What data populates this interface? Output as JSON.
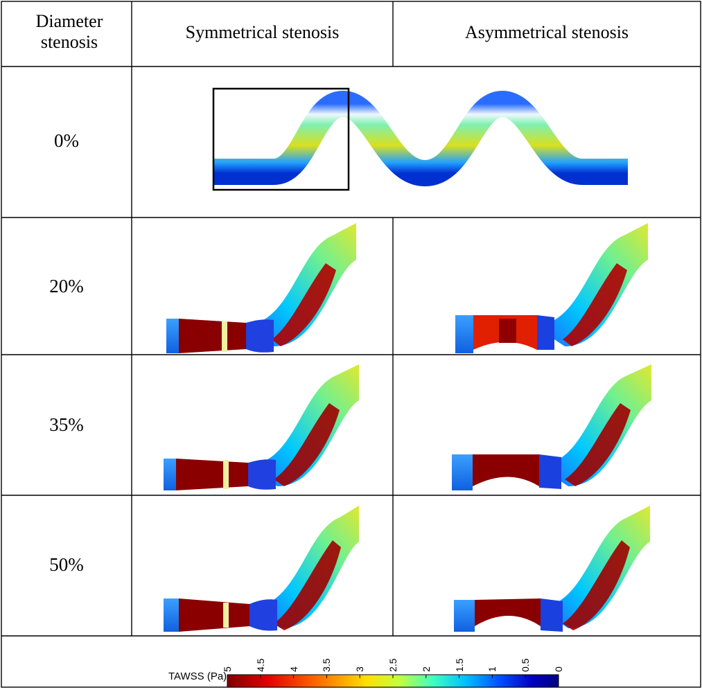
{
  "table": {
    "header": {
      "col1": "Diameter stenosis",
      "col2": "Symmetrical stenosis",
      "col3": "Asymmetrical stenosis"
    },
    "rows": [
      {
        "label": "0%"
      },
      {
        "label": "20%"
      },
      {
        "label": "35%"
      },
      {
        "label": "50%"
      }
    ]
  },
  "colorbar": {
    "title": "TAWSS (Pa)",
    "ticks": [
      "5",
      "4.5",
      "4",
      "3.5",
      "3",
      "2.5",
      "2",
      "1.5",
      "1",
      "0.5",
      "0"
    ],
    "range": [
      5,
      0
    ],
    "colors": [
      "#7f0000",
      "#e00000",
      "#ff7000",
      "#ffe000",
      "#c0ff40",
      "#40ffc0",
      "#00c0ff",
      "#0050ff",
      "#0000c0",
      "#00007f"
    ]
  }
}
